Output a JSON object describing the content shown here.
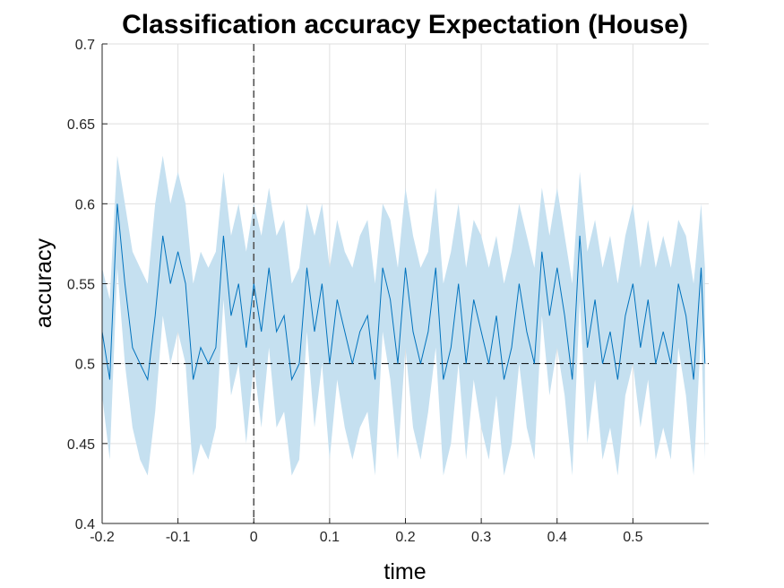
{
  "chart_data": {
    "type": "line",
    "title": "Classification accuracy Expectation (House)",
    "xlabel": "time",
    "ylabel": "accuracy",
    "xlim": [
      -0.2,
      0.6
    ],
    "ylim": [
      0.4,
      0.7
    ],
    "xticks": [
      -0.2,
      -0.1,
      0,
      0.1,
      0.2,
      0.3,
      0.4,
      0.5
    ],
    "xtick_labels": [
      "-0.2",
      "-0.1",
      "0",
      "0.1",
      "0.2",
      "0.3",
      "0.4",
      "0.5"
    ],
    "yticks": [
      0.4,
      0.45,
      0.5,
      0.55,
      0.6,
      0.65,
      0.7
    ],
    "ytick_labels": [
      "0.4",
      "0.45",
      "0.5",
      "0.55",
      "0.6",
      "0.65",
      "0.7"
    ],
    "grid": true,
    "chance_level": 0.5,
    "event_time": 0,
    "colors": {
      "line": "#0072bd",
      "band": "#c5e0f0",
      "reference": "#000000",
      "event": "#555555"
    },
    "series": [
      {
        "x": [
          -0.2,
          -0.19,
          -0.18,
          -0.17,
          -0.16,
          -0.15,
          -0.14,
          -0.13,
          -0.12,
          -0.11,
          -0.1,
          -0.09,
          -0.08,
          -0.07,
          -0.06,
          -0.05,
          -0.04,
          -0.03,
          -0.02,
          -0.01,
          0.0,
          0.01,
          0.02,
          0.03,
          0.04,
          0.05,
          0.06,
          0.07,
          0.08,
          0.09,
          0.1,
          0.11,
          0.12,
          0.13,
          0.14,
          0.15,
          0.16,
          0.17,
          0.18,
          0.19,
          0.2,
          0.21,
          0.22,
          0.23,
          0.24,
          0.25,
          0.26,
          0.27,
          0.28,
          0.29,
          0.3,
          0.31,
          0.32,
          0.33,
          0.34,
          0.35,
          0.36,
          0.37,
          0.38,
          0.39,
          0.4,
          0.41,
          0.42,
          0.43,
          0.44,
          0.45,
          0.46,
          0.47,
          0.48,
          0.49,
          0.5,
          0.51,
          0.52,
          0.53,
          0.54,
          0.55,
          0.56,
          0.57,
          0.58,
          0.59,
          0.595
        ],
        "values": [
          0.52,
          0.49,
          0.6,
          0.55,
          0.51,
          0.5,
          0.49,
          0.53,
          0.58,
          0.55,
          0.57,
          0.55,
          0.49,
          0.51,
          0.5,
          0.51,
          0.58,
          0.53,
          0.55,
          0.51,
          0.55,
          0.52,
          0.56,
          0.52,
          0.53,
          0.49,
          0.5,
          0.56,
          0.52,
          0.55,
          0.5,
          0.54,
          0.52,
          0.5,
          0.52,
          0.53,
          0.49,
          0.56,
          0.54,
          0.5,
          0.56,
          0.52,
          0.5,
          0.52,
          0.56,
          0.49,
          0.51,
          0.55,
          0.5,
          0.54,
          0.52,
          0.5,
          0.53,
          0.49,
          0.51,
          0.55,
          0.52,
          0.5,
          0.57,
          0.53,
          0.56,
          0.53,
          0.49,
          0.58,
          0.51,
          0.54,
          0.5,
          0.52,
          0.49,
          0.53,
          0.55,
          0.51,
          0.54,
          0.5,
          0.52,
          0.5,
          0.55,
          0.53,
          0.49,
          0.56,
          0.5
        ],
        "upper": [
          0.56,
          0.54,
          0.63,
          0.6,
          0.57,
          0.56,
          0.55,
          0.6,
          0.63,
          0.6,
          0.62,
          0.6,
          0.55,
          0.57,
          0.56,
          0.57,
          0.62,
          0.58,
          0.6,
          0.57,
          0.6,
          0.58,
          0.61,
          0.58,
          0.59,
          0.55,
          0.56,
          0.6,
          0.58,
          0.6,
          0.56,
          0.59,
          0.57,
          0.56,
          0.58,
          0.59,
          0.55,
          0.6,
          0.59,
          0.56,
          0.61,
          0.58,
          0.56,
          0.57,
          0.61,
          0.55,
          0.57,
          0.6,
          0.56,
          0.59,
          0.58,
          0.56,
          0.58,
          0.55,
          0.57,
          0.6,
          0.58,
          0.56,
          0.61,
          0.58,
          0.61,
          0.58,
          0.55,
          0.62,
          0.57,
          0.59,
          0.56,
          0.58,
          0.55,
          0.58,
          0.6,
          0.56,
          0.59,
          0.56,
          0.58,
          0.56,
          0.59,
          0.58,
          0.55,
          0.6,
          0.56
        ],
        "lower": [
          0.48,
          0.44,
          0.56,
          0.5,
          0.46,
          0.44,
          0.43,
          0.47,
          0.53,
          0.5,
          0.52,
          0.5,
          0.43,
          0.45,
          0.44,
          0.46,
          0.54,
          0.48,
          0.5,
          0.45,
          0.5,
          0.46,
          0.51,
          0.46,
          0.47,
          0.43,
          0.44,
          0.52,
          0.46,
          0.5,
          0.44,
          0.49,
          0.46,
          0.44,
          0.46,
          0.47,
          0.43,
          0.52,
          0.49,
          0.44,
          0.51,
          0.46,
          0.44,
          0.47,
          0.51,
          0.43,
          0.45,
          0.5,
          0.44,
          0.49,
          0.46,
          0.44,
          0.48,
          0.43,
          0.45,
          0.5,
          0.46,
          0.44,
          0.53,
          0.48,
          0.51,
          0.48,
          0.43,
          0.54,
          0.45,
          0.49,
          0.44,
          0.46,
          0.43,
          0.48,
          0.5,
          0.46,
          0.49,
          0.44,
          0.46,
          0.44,
          0.51,
          0.48,
          0.43,
          0.52,
          0.44
        ]
      }
    ]
  }
}
